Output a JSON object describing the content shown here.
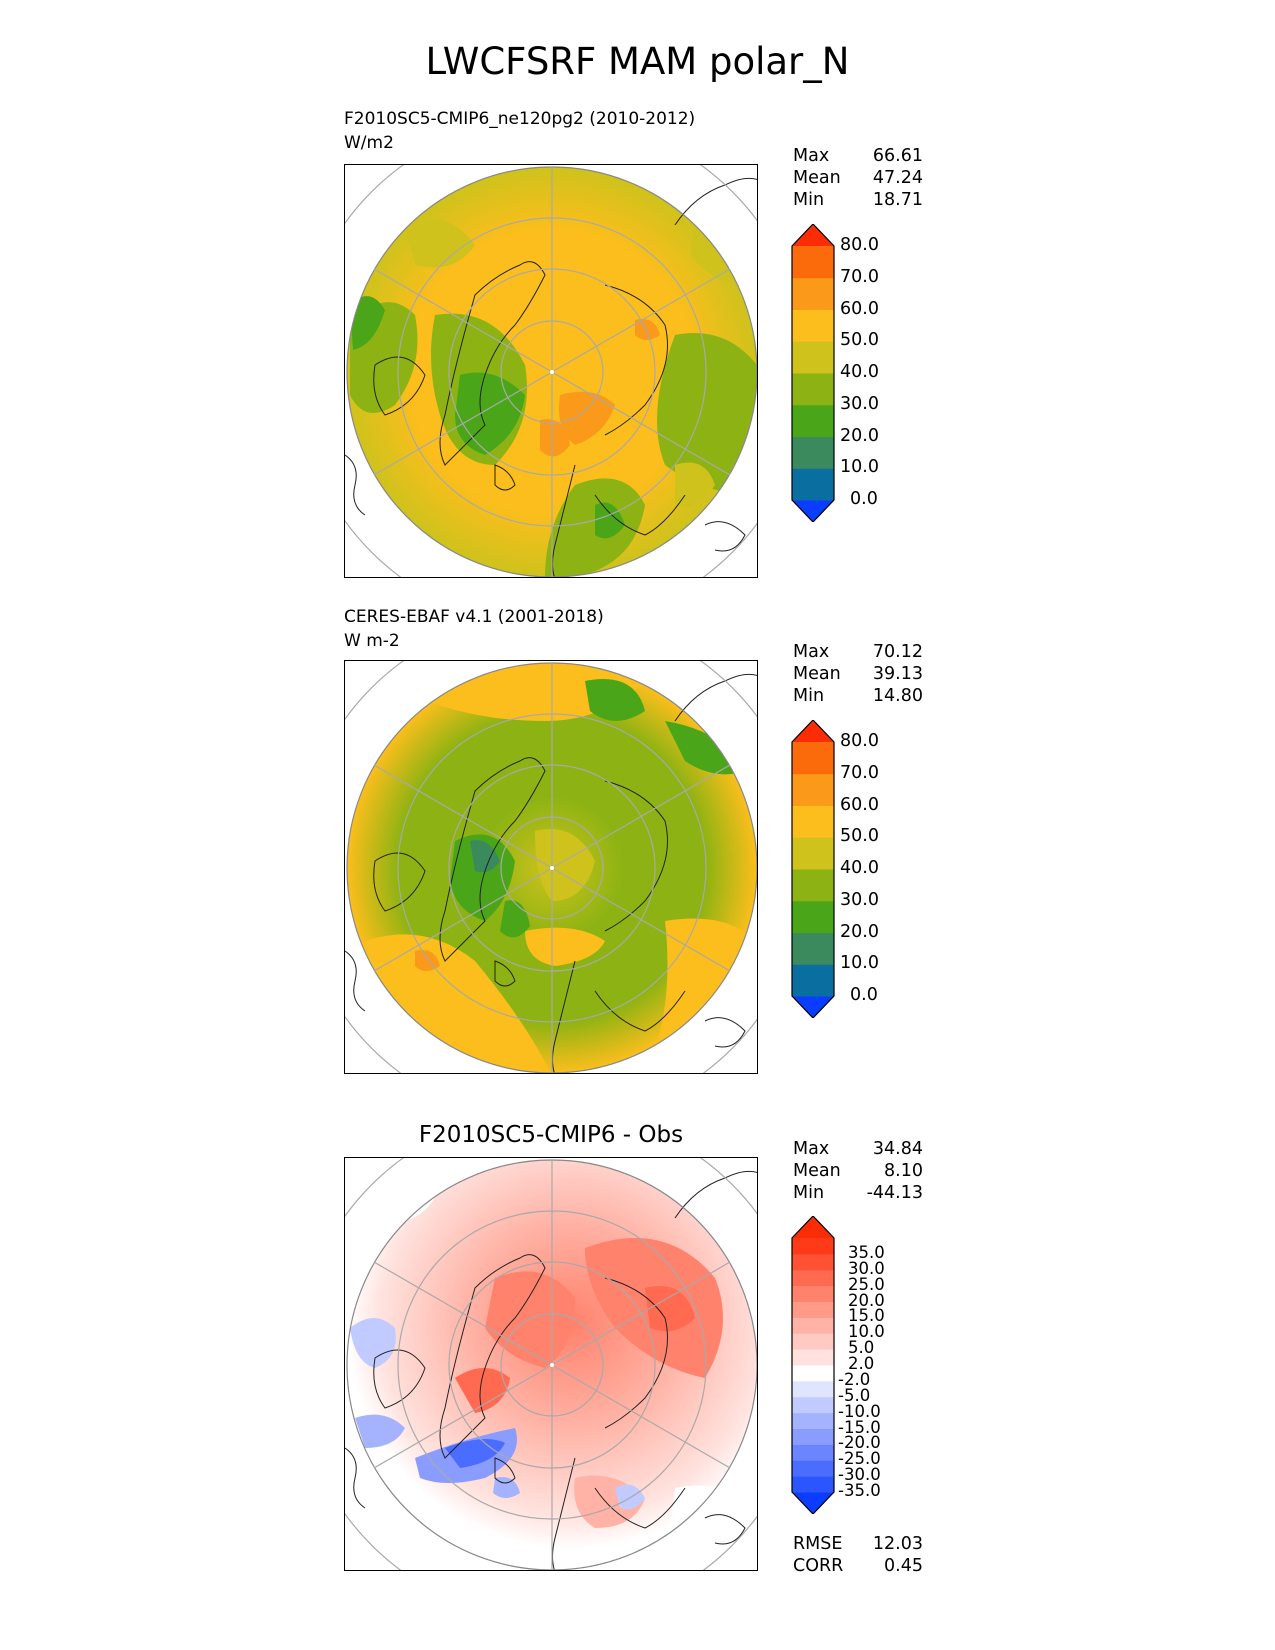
{
  "title": "LWCFSRF MAM polar_N",
  "panels": [
    {
      "id": "test",
      "label_line1": "F2010SC5-CMIP6_ne120pg2 (2010-2012)",
      "label_line2": "W/m2",
      "stats": {
        "max_label": "Max",
        "max": "66.61",
        "mean_label": "Mean",
        "mean": "47.24",
        "min_label": "Min",
        "min": "18.71"
      },
      "colorbar": {
        "colors": [
          "#0a3dff",
          "#0b6ea0",
          "#3a8a5e",
          "#4aa618",
          "#8cb313",
          "#cfc21c",
          "#fbbe1c",
          "#fb991b",
          "#fb6b0c",
          "#fb2d06"
        ],
        "labels": [
          "0.0",
          "10.0",
          "20.0",
          "30.0",
          "40.0",
          "50.0",
          "60.0",
          "70.0",
          "80.0"
        ]
      }
    },
    {
      "id": "ref",
      "label_line1": "CERES-EBAF v4.1 (2001-2018)",
      "label_line2": "W m-2",
      "stats": {
        "max_label": "Max",
        "max": "70.12",
        "mean_label": "Mean",
        "mean": "39.13",
        "min_label": "Min",
        "min": "14.80"
      },
      "colorbar": {
        "colors": [
          "#0a3dff",
          "#0b6ea0",
          "#3a8a5e",
          "#4aa618",
          "#8cb313",
          "#cfc21c",
          "#fbbe1c",
          "#fb991b",
          "#fb6b0c",
          "#fb2d06"
        ],
        "labels": [
          "0.0",
          "10.0",
          "20.0",
          "30.0",
          "40.0",
          "50.0",
          "60.0",
          "70.0",
          "80.0"
        ]
      }
    },
    {
      "id": "diff",
      "title": "F2010SC5-CMIP6 - Obs",
      "stats": {
        "max_label": "Max",
        "max": "34.84",
        "mean_label": "Mean",
        "mean": "8.10",
        "min_label": "Min",
        "min": "-44.13"
      },
      "metrics": {
        "rmse_label": "RMSE",
        "rmse": "12.03",
        "corr_label": "CORR",
        "corr": "0.45"
      },
      "colorbar": {
        "colors": [
          "#0a3dff",
          "#2a55ff",
          "#4a6cff",
          "#6a85ff",
          "#8a9dff",
          "#a5b3ff",
          "#c2cbff",
          "#dfe4ff",
          "#ffffff",
          "#ffe2de",
          "#ffcac2",
          "#ffb2a5",
          "#ff9a89",
          "#ff826c",
          "#ff6a50",
          "#ff5234",
          "#ff3a18",
          "#fb2d06"
        ],
        "labels": [
          "-35.0",
          "-30.0",
          "-25.0",
          "-20.0",
          "-15.0",
          "-10.0",
          "-5.0",
          "-2.0",
          "2.0",
          "5.0",
          "10.0",
          "15.0",
          "20.0",
          "25.0",
          "30.0",
          "35.0"
        ]
      }
    }
  ]
}
